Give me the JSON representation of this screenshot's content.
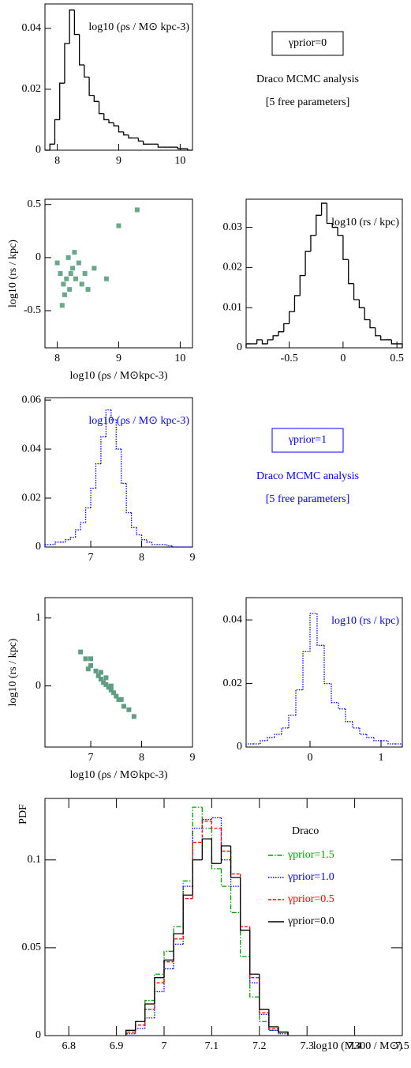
{
  "chart_data": [
    {
      "type": "histogram",
      "title": "log10 (ρs / M⊙ kpc-3)",
      "color": "#000000",
      "dash": "solid",
      "bins": [
        7.8,
        7.88,
        7.96,
        8.04,
        8.12,
        8.2,
        8.28,
        8.36,
        8.44,
        8.52,
        8.6,
        8.68,
        8.76,
        8.84,
        8.92,
        9,
        9.08,
        9.16,
        9.24,
        9.32,
        9.4,
        9.48,
        9.56,
        9.64,
        9.72,
        9.8,
        9.88,
        9.96,
        10.04,
        10.12,
        10.2
      ],
      "values": [
        0,
        0.002,
        0.01,
        0.022,
        0.035,
        0.046,
        0.038,
        0.028,
        0.024,
        0.018,
        0.016,
        0.012,
        0.01,
        0.009,
        0.008,
        0.006,
        0.005,
        0.004,
        0.004,
        0.003,
        0.002,
        0.002,
        0.002,
        0.001,
        0.001,
        0.001,
        0.001,
        0.0005,
        0.0005,
        0
      ],
      "xlim": [
        7.8,
        10.2
      ],
      "ylim": [
        0,
        0.048
      ],
      "xticks": [
        8,
        9,
        10
      ],
      "yticks": [
        0,
        0.02,
        0.04
      ]
    },
    {
      "type": "scatter",
      "xlabel": "log10 (ρs / M⊙kpc-3)",
      "ylabel": "log10 (rs / kpc)",
      "color": "#6aa88c",
      "x": [
        8.05,
        8.1,
        8.15,
        8.2,
        8.25,
        8.0,
        8.3,
        8.12,
        8.35,
        8.4,
        8.18,
        8.08,
        8.45,
        8.22,
        8.5,
        8.28,
        8.6,
        9.0,
        9.3,
        8.8
      ],
      "y": [
        -0.15,
        -0.25,
        -0.2,
        -0.3,
        -0.1,
        -0.05,
        -0.2,
        -0.35,
        -0.05,
        -0.25,
        0.0,
        -0.45,
        -0.15,
        -0.15,
        -0.3,
        0.05,
        -0.1,
        0.3,
        0.45,
        -0.2
      ],
      "xlim": [
        7.8,
        10.2
      ],
      "ylim": [
        -0.85,
        0.55
      ],
      "xticks": [
        8,
        9,
        10
      ],
      "yticks": [
        -0.5,
        0,
        0.5
      ]
    },
    {
      "type": "histogram",
      "title": "log10 (rs / kpc)",
      "color": "#000000",
      "dash": "solid",
      "bins": [
        -0.9,
        -0.85,
        -0.8,
        -0.75,
        -0.7,
        -0.65,
        -0.6,
        -0.55,
        -0.5,
        -0.45,
        -0.4,
        -0.35,
        -0.3,
        -0.25,
        -0.2,
        -0.15,
        -0.1,
        -0.05,
        0,
        0.05,
        0.1,
        0.15,
        0.2,
        0.25,
        0.3,
        0.35,
        0.4,
        0.45,
        0.5,
        0.55
      ],
      "values": [
        0.001,
        0.001,
        0.002,
        0.001,
        0.002,
        0.003,
        0.004,
        0.006,
        0.009,
        0.013,
        0.018,
        0.024,
        0.028,
        0.033,
        0.036,
        0.031,
        0.03,
        0.028,
        0.022,
        0.016,
        0.012,
        0.01,
        0.007,
        0.005,
        0.003,
        0.002,
        0.002,
        0.001,
        0.001
      ],
      "xlim": [
        -0.9,
        0.55
      ],
      "ylim": [
        0,
        0.037
      ],
      "xticks": [
        -0.5,
        0,
        0.5
      ],
      "yticks": [
        0,
        0.01,
        0.02,
        0.03
      ]
    },
    {
      "type": "histogram",
      "title": "log10 (ρs / M⊙ kpc-3)",
      "color": "#0000ff",
      "dash": "dotted",
      "bins": [
        6.1,
        6.2,
        6.3,
        6.4,
        6.5,
        6.6,
        6.7,
        6.8,
        6.9,
        7.0,
        7.1,
        7.2,
        7.3,
        7.4,
        7.5,
        7.6,
        7.7,
        7.8,
        7.9,
        8.0,
        8.1,
        8.2,
        8.3,
        8.4,
        8.5,
        8.6,
        8.7,
        8.8,
        8.9,
        9.0
      ],
      "values": [
        0.001,
        0.001,
        0.002,
        0.002,
        0.003,
        0.004,
        0.007,
        0.01,
        0.016,
        0.024,
        0.034,
        0.045,
        0.056,
        0.052,
        0.04,
        0.026,
        0.014,
        0.008,
        0.005,
        0.003,
        0.002,
        0.001,
        0.001,
        0.001,
        0.0005,
        0,
        0,
        0,
        0
      ],
      "xlim": [
        6.1,
        9.0
      ],
      "ylim": [
        0,
        0.061
      ],
      "xticks": [
        7,
        8,
        9
      ],
      "yticks": [
        0,
        0.02,
        0.04,
        0.06
      ]
    },
    {
      "type": "scatter",
      "xlabel": "log10 (ρs / M⊙kpc-3)",
      "ylabel": "log10 (rs / kpc)",
      "color": "#5f9e85",
      "x": [
        6.8,
        6.9,
        7.0,
        7.1,
        7.15,
        7.2,
        7.25,
        7.3,
        7.35,
        7.4,
        7.45,
        7.5,
        7.55,
        7.65,
        7.75,
        7.85,
        7.0,
        7.2,
        7.4,
        7.6,
        6.95,
        7.3
      ],
      "y": [
        0.5,
        0.4,
        0.3,
        0.22,
        0.15,
        0.1,
        0.05,
        0.02,
        -0.02,
        -0.06,
        -0.1,
        -0.15,
        -0.2,
        -0.3,
        -0.35,
        -0.45,
        0.4,
        0.2,
        0.0,
        -0.2,
        0.25,
        0.12
      ],
      "xlim": [
        6.1,
        9.0
      ],
      "ylim": [
        -0.9,
        1.3
      ],
      "xticks": [
        7,
        8,
        9
      ],
      "yticks": [
        0,
        1
      ]
    },
    {
      "type": "histogram",
      "title": "log10 (rs / kpc)",
      "color": "#0000ff",
      "dash": "dotted",
      "bins": [
        -0.9,
        -0.8,
        -0.7,
        -0.6,
        -0.5,
        -0.4,
        -0.3,
        -0.2,
        -0.1,
        0,
        0.1,
        0.2,
        0.3,
        0.4,
        0.5,
        0.6,
        0.7,
        0.8,
        0.9,
        1.0,
        1.1,
        1.2,
        1.3
      ],
      "values": [
        0.001,
        0.001,
        0.002,
        0.003,
        0.004,
        0.006,
        0.01,
        0.018,
        0.03,
        0.042,
        0.032,
        0.02,
        0.014,
        0.012,
        0.008,
        0.006,
        0.004,
        0.003,
        0.002,
        0.002,
        0.001,
        0.001
      ],
      "xlim": [
        -0.9,
        1.3
      ],
      "ylim": [
        0,
        0.047
      ],
      "xticks": [
        0,
        1
      ],
      "yticks": [
        0,
        0.02,
        0.04
      ]
    },
    {
      "type": "histogram",
      "xlabel": "log10 (M300 / M⊙)",
      "ylabel": "PDF",
      "legend_title": "Draco",
      "legend": "upper right",
      "bins": [
        6.92,
        6.94,
        6.96,
        6.98,
        7.0,
        7.02,
        7.04,
        7.06,
        7.08,
        7.1,
        7.12,
        7.14,
        7.16,
        7.18,
        7.2,
        7.22,
        7.24,
        7.26
      ],
      "series": [
        {
          "name": "γprior=1.5",
          "color": "#00a000",
          "dash": "dashdot",
          "values": [
            0.002,
            0.008,
            0.02,
            0.035,
            0.048,
            0.062,
            0.088,
            0.13,
            0.118,
            0.095,
            0.085,
            0.07,
            0.045,
            0.022,
            0.008,
            0.003,
            0.002
          ]
        },
        {
          "name": "γprior=1.0",
          "color": "#0000ff",
          "dash": "dotted",
          "values": [
            0.001,
            0.004,
            0.01,
            0.025,
            0.038,
            0.052,
            0.085,
            0.118,
            0.123,
            0.124,
            0.1,
            0.085,
            0.06,
            0.03,
            0.012,
            0.003,
            0.001
          ]
        },
        {
          "name": "γprior=0.5",
          "color": "#ff0000",
          "dash": "dashed",
          "values": [
            0.002,
            0.006,
            0.015,
            0.03,
            0.042,
            0.055,
            0.078,
            0.11,
            0.122,
            0.118,
            0.105,
            0.092,
            0.062,
            0.033,
            0.013,
            0.004,
            0.002
          ]
        },
        {
          "name": "γprior=0.0",
          "color": "#000000",
          "dash": "solid",
          "values": [
            0.003,
            0.008,
            0.018,
            0.033,
            0.043,
            0.058,
            0.08,
            0.1,
            0.112,
            0.098,
            0.108,
            0.09,
            0.06,
            0.035,
            0.015,
            0.005,
            0.002
          ]
        }
      ],
      "xlim": [
        6.75,
        7.5
      ],
      "ylim": [
        0,
        0.135
      ],
      "xticks": [
        6.8,
        6.9,
        7,
        7.1,
        7.2,
        7.3,
        7.4,
        7.5
      ],
      "yticks": [
        0,
        0.05,
        0.1
      ]
    }
  ],
  "info_panels": [
    {
      "label": "γprior=0",
      "lines": [
        "Draco MCMC analysis",
        "[5 free parameters]"
      ],
      "color": "#000000"
    },
    {
      "label": "γprior=1",
      "lines": [
        "Draco MCMC analysis",
        "[5 free parameters]"
      ],
      "color": "#0000ff"
    }
  ]
}
